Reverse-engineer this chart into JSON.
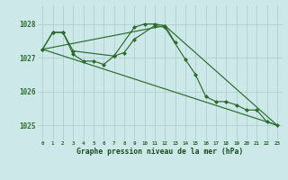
{
  "background_color": "#cce8e8",
  "grid_color": "#aacccc",
  "line_color": "#2d6b2d",
  "xlabel": "Graphe pression niveau de la mer (hPa)",
  "xlabel_color": "#1a4b1a",
  "ylabel_ticks": [
    1025,
    1026,
    1027,
    1028
  ],
  "xlim": [
    -0.5,
    23.5
  ],
  "ylim": [
    1024.55,
    1028.55
  ],
  "line1_x": [
    0,
    1,
    2,
    3,
    7,
    9,
    10,
    11,
    12,
    13
  ],
  "line1_y": [
    1027.25,
    1027.75,
    1027.75,
    1027.2,
    1027.05,
    1027.9,
    1028.0,
    1028.0,
    1027.95,
    1027.45
  ],
  "line2_x": [
    0,
    1,
    2,
    3,
    4,
    5,
    6,
    7,
    8,
    9,
    11,
    12,
    14,
    15,
    16,
    17,
    18,
    19,
    20,
    21,
    22,
    23
  ],
  "line2_y": [
    1027.25,
    1027.75,
    1027.75,
    1027.1,
    1026.9,
    1026.9,
    1026.8,
    1027.05,
    1027.15,
    1027.55,
    1027.95,
    1027.9,
    1026.95,
    1026.5,
    1025.85,
    1025.7,
    1025.7,
    1025.6,
    1025.45,
    1025.45,
    1025.1,
    1025.0
  ],
  "line3_x": [
    0,
    23
  ],
  "line3_y": [
    1027.25,
    1025.0
  ],
  "line4_x": [
    0,
    12,
    23
  ],
  "line4_y": [
    1027.25,
    1027.95,
    1025.0
  ]
}
